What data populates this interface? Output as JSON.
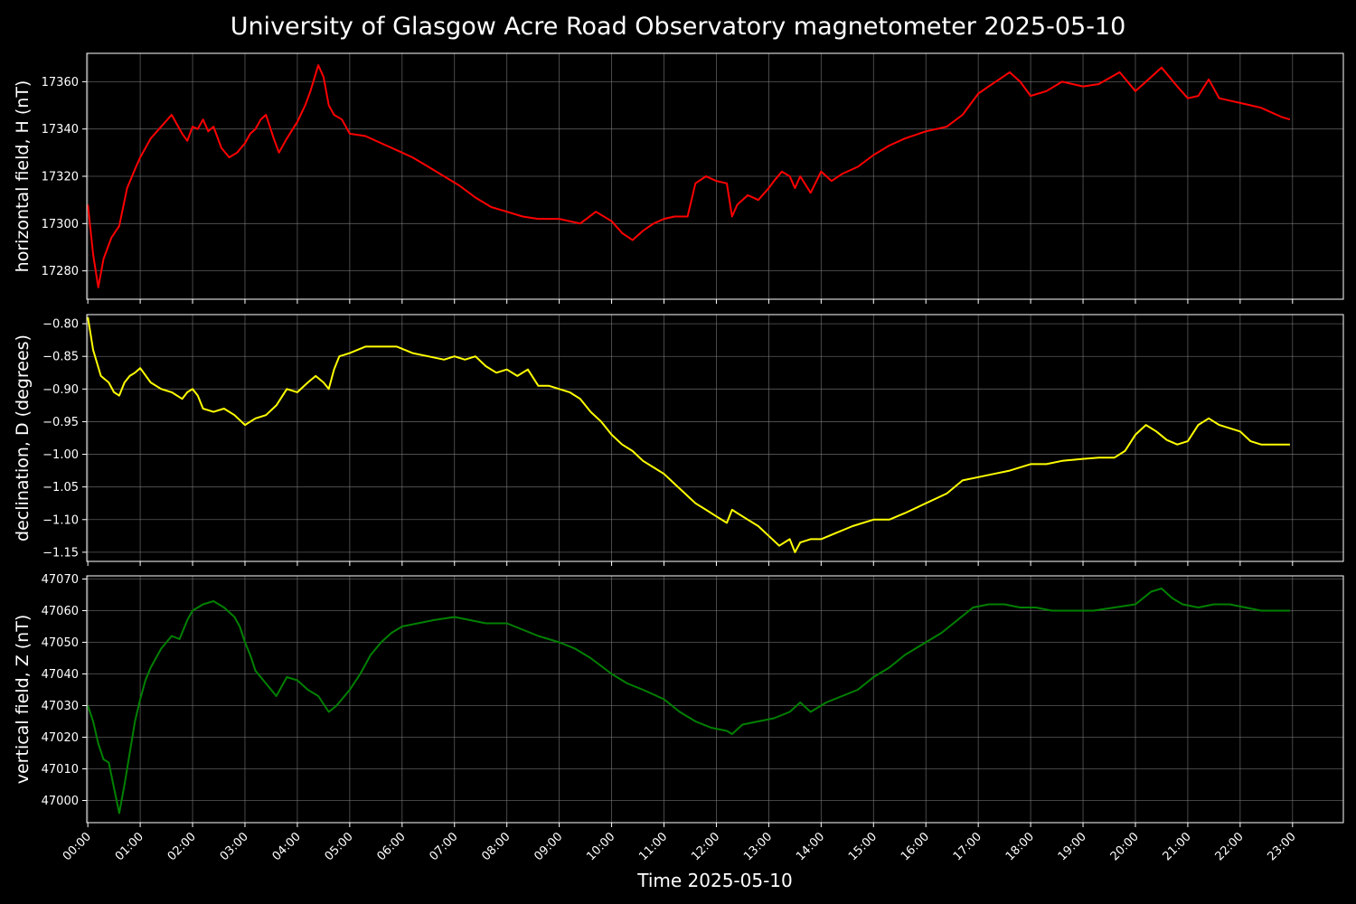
{
  "title": "University of Glasgow Acre Road Observatory magnetometer 2025-05-10",
  "colors": {
    "background": "#000000",
    "grid": "#808080",
    "H": "#ff0000",
    "D": "#ffff00",
    "Z": "#008000"
  },
  "chart_data": [
    {
      "type": "line",
      "ylabel": "horizontal field, H (nT)",
      "series": [
        {
          "color": "#ff0000",
          "x": [
            0,
            0.1,
            0.2,
            0.3,
            0.45,
            0.6,
            0.75,
            0.9,
            1.0,
            1.2,
            1.4,
            1.6,
            1.8,
            1.9,
            2.0,
            2.1,
            2.2,
            2.3,
            2.4,
            2.55,
            2.7,
            2.85,
            3.0,
            3.1,
            3.2,
            3.3,
            3.4,
            3.55,
            3.65,
            3.8,
            4.0,
            4.15,
            4.25,
            4.4,
            4.5,
            4.6,
            4.7,
            4.85,
            5.0,
            5.3,
            5.6,
            5.9,
            6.2,
            6.5,
            6.8,
            7.1,
            7.4,
            7.7,
            8.0,
            8.3,
            8.6,
            9.0,
            9.4,
            9.7,
            10.0,
            10.2,
            10.4,
            10.6,
            10.8,
            11.0,
            11.2,
            11.45,
            11.6,
            11.8,
            12.0,
            12.2,
            12.3,
            12.4,
            12.6,
            12.8,
            13.0,
            13.1,
            13.25,
            13.4,
            13.5,
            13.6,
            13.8,
            14.0,
            14.2,
            14.4,
            14.7,
            15.0,
            15.3,
            15.6,
            16.0,
            16.4,
            16.7,
            17.0,
            17.2,
            17.4,
            17.6,
            17.8,
            18.0,
            18.3,
            18.6,
            19.0,
            19.3,
            19.7,
            20.0,
            20.2,
            20.5,
            20.8,
            21.0,
            21.2,
            21.4,
            21.6,
            21.8,
            22.0,
            22.2,
            22.4,
            22.6,
            22.8,
            22.95
          ],
          "y": [
            17308,
            17287,
            17273,
            17285,
            17294,
            17299,
            17315,
            17323,
            17328,
            17336,
            17341,
            17346,
            17338,
            17335,
            17341,
            17340,
            17344,
            17339,
            17341,
            17332,
            17328,
            17330,
            17334,
            17338,
            17340,
            17344,
            17346,
            17336,
            17330,
            17336,
            17343,
            17350,
            17356,
            17367,
            17362,
            17350,
            17346,
            17344,
            17338,
            17337,
            17334,
            17331,
            17328,
            17324,
            17320,
            17316,
            17311,
            17307,
            17305,
            17303,
            17302,
            17302,
            17300,
            17305,
            17301,
            17296,
            17293,
            17297,
            17300,
            17302,
            17303,
            17303,
            17317,
            17320,
            17318,
            17317,
            17303,
            17308,
            17312,
            17310,
            17315,
            17318,
            17322,
            17320,
            17315,
            17320,
            17313,
            17322,
            17318,
            17321,
            17324,
            17329,
            17333,
            17336,
            17339,
            17341,
            17346,
            17355,
            17358,
            17361,
            17364,
            17360,
            17354,
            17356,
            17360,
            17358,
            17359,
            17364,
            17356,
            17360,
            17366,
            17358,
            17353,
            17354,
            17361,
            17353,
            17352,
            17351,
            17350,
            17349,
            17347,
            17345,
            17344
          ]
        }
      ],
      "yticks": [
        "17280",
        "17300",
        "17320",
        "17340",
        "17360"
      ]
    },
    {
      "type": "line",
      "ylabel": "declination, D (degrees)",
      "series": [
        {
          "color": "#ffff00",
          "x": [
            0,
            0.1,
            0.25,
            0.4,
            0.5,
            0.6,
            0.7,
            0.8,
            0.9,
            1.0,
            1.2,
            1.4,
            1.6,
            1.8,
            1.9,
            2.0,
            2.1,
            2.2,
            2.4,
            2.6,
            2.8,
            3.0,
            3.2,
            3.4,
            3.6,
            3.8,
            4.0,
            4.2,
            4.35,
            4.5,
            4.6,
            4.7,
            4.8,
            5.0,
            5.3,
            5.6,
            5.9,
            6.2,
            6.5,
            6.8,
            7.0,
            7.2,
            7.4,
            7.6,
            7.8,
            8.0,
            8.2,
            8.4,
            8.6,
            8.8,
            9.0,
            9.2,
            9.4,
            9.6,
            9.8,
            10.0,
            10.2,
            10.4,
            10.6,
            10.8,
            11.0,
            11.2,
            11.4,
            11.6,
            11.8,
            12.0,
            12.2,
            12.3,
            12.4,
            12.6,
            12.8,
            13.0,
            13.2,
            13.4,
            13.5,
            13.6,
            13.8,
            14.0,
            14.3,
            14.6,
            15.0,
            15.3,
            15.6,
            16.0,
            16.4,
            16.7,
            17.0,
            17.3,
            17.6,
            18.0,
            18.3,
            18.6,
            19.0,
            19.3,
            19.6,
            19.8,
            20.0,
            20.2,
            20.4,
            20.6,
            20.8,
            21.0,
            21.2,
            21.4,
            21.6,
            21.8,
            22.0,
            22.2,
            22.4,
            22.6,
            22.95
          ],
          "y": [
            -0.79,
            -0.84,
            -0.88,
            -0.89,
            -0.905,
            -0.91,
            -0.89,
            -0.88,
            -0.875,
            -0.868,
            -0.89,
            -0.9,
            -0.905,
            -0.915,
            -0.905,
            -0.9,
            -0.91,
            -0.93,
            -0.935,
            -0.93,
            -0.94,
            -0.955,
            -0.945,
            -0.94,
            -0.925,
            -0.9,
            -0.905,
            -0.89,
            -0.88,
            -0.89,
            -0.9,
            -0.87,
            -0.85,
            -0.845,
            -0.835,
            -0.835,
            -0.835,
            -0.845,
            -0.85,
            -0.855,
            -0.85,
            -0.855,
            -0.85,
            -0.865,
            -0.875,
            -0.87,
            -0.88,
            -0.87,
            -0.895,
            -0.895,
            -0.9,
            -0.905,
            -0.915,
            -0.935,
            -0.95,
            -0.97,
            -0.985,
            -0.995,
            -1.01,
            -1.02,
            -1.03,
            -1.045,
            -1.06,
            -1.075,
            -1.085,
            -1.095,
            -1.105,
            -1.085,
            -1.09,
            -1.1,
            -1.11,
            -1.125,
            -1.14,
            -1.13,
            -1.15,
            -1.135,
            -1.13,
            -1.13,
            -1.12,
            -1.11,
            -1.1,
            -1.1,
            -1.09,
            -1.075,
            -1.06,
            -1.04,
            -1.035,
            -1.03,
            -1.025,
            -1.015,
            -1.015,
            -1.01,
            -1.007,
            -1.005,
            -1.005,
            -0.995,
            -0.97,
            -0.955,
            -0.965,
            -0.978,
            -0.985,
            -0.98,
            -0.955,
            -0.945,
            -0.955,
            -0.96,
            -0.965,
            -0.98,
            -0.985,
            -0.985,
            -0.985
          ]
        }
      ],
      "yticks": [
        "−0.80",
        "−0.85",
        "−0.90",
        "−0.95",
        "−1.00",
        "−1.05",
        "−1.10",
        "−1.15"
      ]
    },
    {
      "type": "line",
      "ylabel": "vertical field, Z (nT)",
      "series": [
        {
          "color": "#008000",
          "x": [
            0,
            0.1,
            0.2,
            0.3,
            0.4,
            0.5,
            0.6,
            0.7,
            0.8,
            0.9,
            1.0,
            1.1,
            1.2,
            1.4,
            1.6,
            1.75,
            1.9,
            2.0,
            2.2,
            2.4,
            2.6,
            2.8,
            2.9,
            3.0,
            3.1,
            3.2,
            3.4,
            3.6,
            3.8,
            4.0,
            4.2,
            4.4,
            4.6,
            4.75,
            4.9,
            5.0,
            5.2,
            5.4,
            5.6,
            5.8,
            6.0,
            6.3,
            6.6,
            7.0,
            7.3,
            7.6,
            8.0,
            8.3,
            8.6,
            9.0,
            9.3,
            9.6,
            10.0,
            10.3,
            10.6,
            11.0,
            11.3,
            11.6,
            11.9,
            12.2,
            12.3,
            12.5,
            12.8,
            13.1,
            13.4,
            13.6,
            13.8,
            14.1,
            14.4,
            14.7,
            15.0,
            15.3,
            15.6,
            16.0,
            16.3,
            16.6,
            16.9,
            17.2,
            17.5,
            17.8,
            18.1,
            18.4,
            18.8,
            19.2,
            19.6,
            20.0,
            20.3,
            20.5,
            20.7,
            20.9,
            21.2,
            21.5,
            21.8,
            22.1,
            22.4,
            22.7,
            22.95
          ],
          "y": [
            47030,
            47025,
            47018,
            47013,
            47012,
            47004,
            46996,
            47005,
            47015,
            47025,
            47032,
            47038,
            47042,
            47048,
            47052,
            47051,
            47057,
            47060,
            47062,
            47063,
            47061,
            47058,
            47055,
            47050,
            47046,
            47041,
            47037,
            47033,
            47039,
            47038,
            47035,
            47033,
            47028,
            47030,
            47033,
            47035,
            47040,
            47046,
            47050,
            47053,
            47055,
            47056,
            47057,
            47058,
            47057,
            47056,
            47056,
            47054,
            47052,
            47050,
            47048,
            47045,
            47040,
            47037,
            47035,
            47032,
            47028,
            47025,
            47023,
            47022,
            47021,
            47024,
            47025,
            47026,
            47028,
            47031,
            47028,
            47031,
            47033,
            47035,
            47039,
            47042,
            47046,
            47050,
            47053,
            47057,
            47061,
            47062,
            47062,
            47061,
            47061,
            47060,
            47060,
            47060,
            47061,
            47062,
            47066,
            47067,
            47064,
            47062,
            47061,
            47062,
            47062,
            47061,
            47060,
            47060,
            47060
          ]
        }
      ],
      "yticks": [
        "47000",
        "47010",
        "47020",
        "47030",
        "47040",
        "47050",
        "47060",
        "47070"
      ]
    }
  ],
  "x_axis": {
    "xlabel": "Time 2025-05-10",
    "ticks": [
      "00:00",
      "01:00",
      "02:00",
      "03:00",
      "04:00",
      "05:00",
      "06:00",
      "07:00",
      "08:00",
      "09:00",
      "10:00",
      "11:00",
      "12:00",
      "13:00",
      "14:00",
      "15:00",
      "16:00",
      "17:00",
      "18:00",
      "19:00",
      "20:00",
      "21:00",
      "22:00",
      "23:00"
    ]
  }
}
